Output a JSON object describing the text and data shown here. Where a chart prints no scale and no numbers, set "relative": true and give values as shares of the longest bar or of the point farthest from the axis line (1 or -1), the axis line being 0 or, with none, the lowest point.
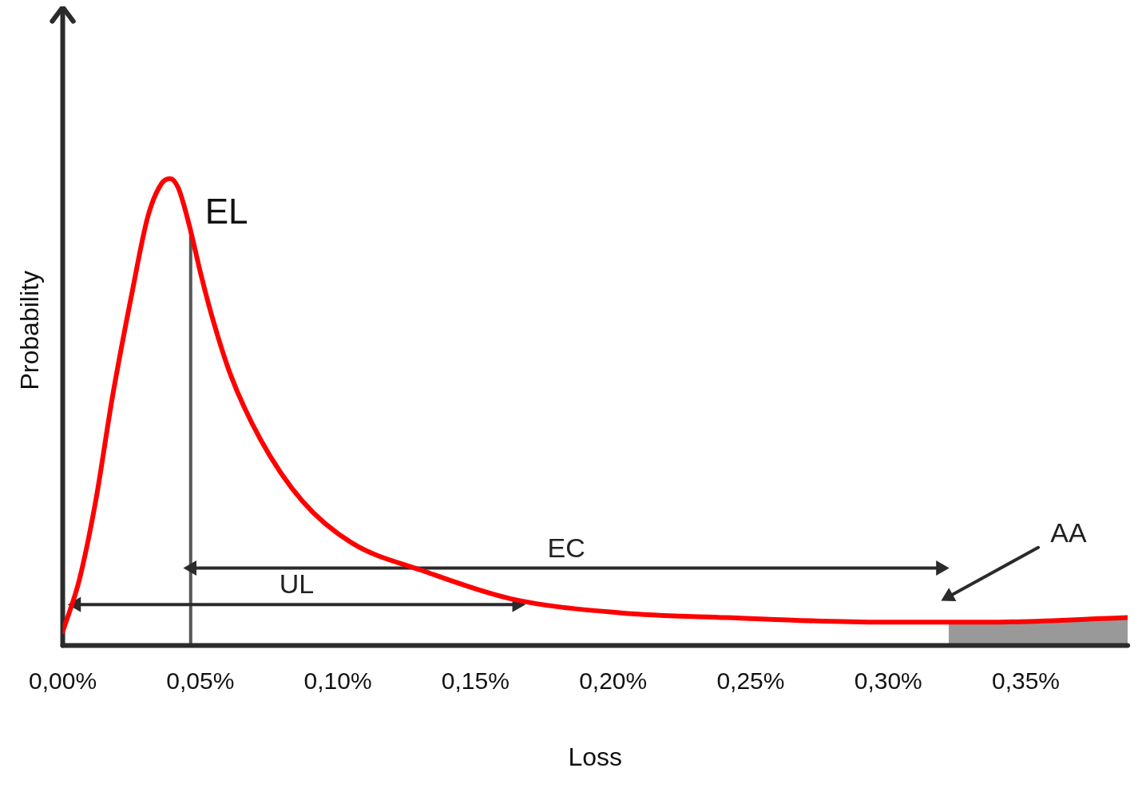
{
  "chart_data": {
    "type": "line",
    "xlabel": "Loss",
    "ylabel": "Probability",
    "relative": true,
    "x": [
      0,
      0.006,
      0.012,
      0.018,
      0.025,
      0.031,
      0.036,
      0.039,
      0.042,
      0.046,
      0.05,
      0.054,
      0.061,
      0.072,
      0.087,
      0.105,
      0.131,
      0.163,
      0.203,
      0.241,
      0.298,
      0.336,
      0.387
    ],
    "series": [
      {
        "color": "#ff0000",
        "values": [
          0.03,
          0.14,
          0.31,
          0.53,
          0.75,
          0.92,
          0.99,
          1,
          0.98,
          0.9,
          0.8,
          0.71,
          0.58,
          0.44,
          0.31,
          0.22,
          0.16,
          0.1,
          0.07,
          0.06,
          0.05,
          0.05,
          0.06
        ]
      },
      {
        "name": "UL",
        "color": "#2b2b2b",
        "x": [
          0.005,
          0.165
        ],
        "values": [
          0.088,
          0.088
        ],
        "marker": "triangle"
      },
      {
        "name": "EC",
        "color": "#2b2b2b",
        "x": [
          0.047,
          0.319
        ],
        "values": [
          0.166,
          0.166
        ],
        "marker": "triangle"
      },
      {
        "color": "#2b2b2b",
        "x": [
          0.3545,
          0.322
        ],
        "values": [
          0.21,
          0.105
        ],
        "marker": "triangle"
      }
    ],
    "xlim": [
      0,
      0.387
    ],
    "xticks": [
      {
        "value": 0,
        "label": "0,00%"
      },
      {
        "value": 0.05,
        "label": "0,05%"
      },
      {
        "value": 0.1,
        "label": "0,10%"
      },
      {
        "value": 0.15,
        "label": "0,15%"
      },
      {
        "value": 0.2,
        "label": "0,20%"
      },
      {
        "value": 0.25,
        "label": "0,25%"
      },
      {
        "value": 0.3,
        "label": "0,30%"
      },
      {
        "value": 0.35,
        "label": "0,35%"
      }
    ],
    "ref_lines": [
      {
        "axis": "x",
        "value": 0.0465,
        "label": "EL",
        "color": "#555555"
      }
    ],
    "bands": [
      {
        "axis": "x",
        "from": 0.322,
        "to": 0.387,
        "color": "#999999",
        "label": "AA"
      }
    ],
    "grid": false,
    "legend": false,
    "marker": "none",
    "line_style": "solid"
  }
}
